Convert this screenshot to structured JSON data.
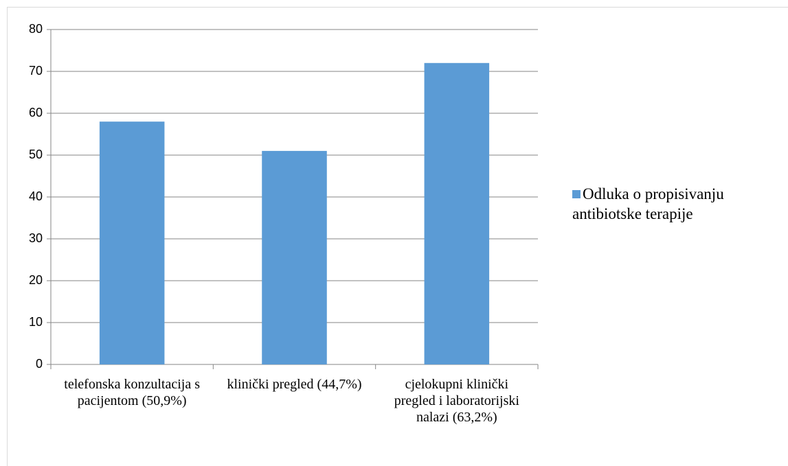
{
  "chart_data": {
    "type": "bar",
    "categories": [
      "telefonska konzultacija s pacijentom (50,9%)",
      "klinički pregled (44,7%)",
      "cjelokupni klinički pregled i laboratorijski nalazi (63,2%)"
    ],
    "series": [
      {
        "name": "Odluka o propisivanju antibiotske terapije",
        "color": "#5b9bd5",
        "values": [
          58,
          51,
          72
        ]
      }
    ],
    "ylim": [
      0,
      80
    ],
    "yticks": [
      0,
      10,
      20,
      30,
      40,
      50,
      60,
      70,
      80
    ],
    "grid": true,
    "legend": "right"
  }
}
